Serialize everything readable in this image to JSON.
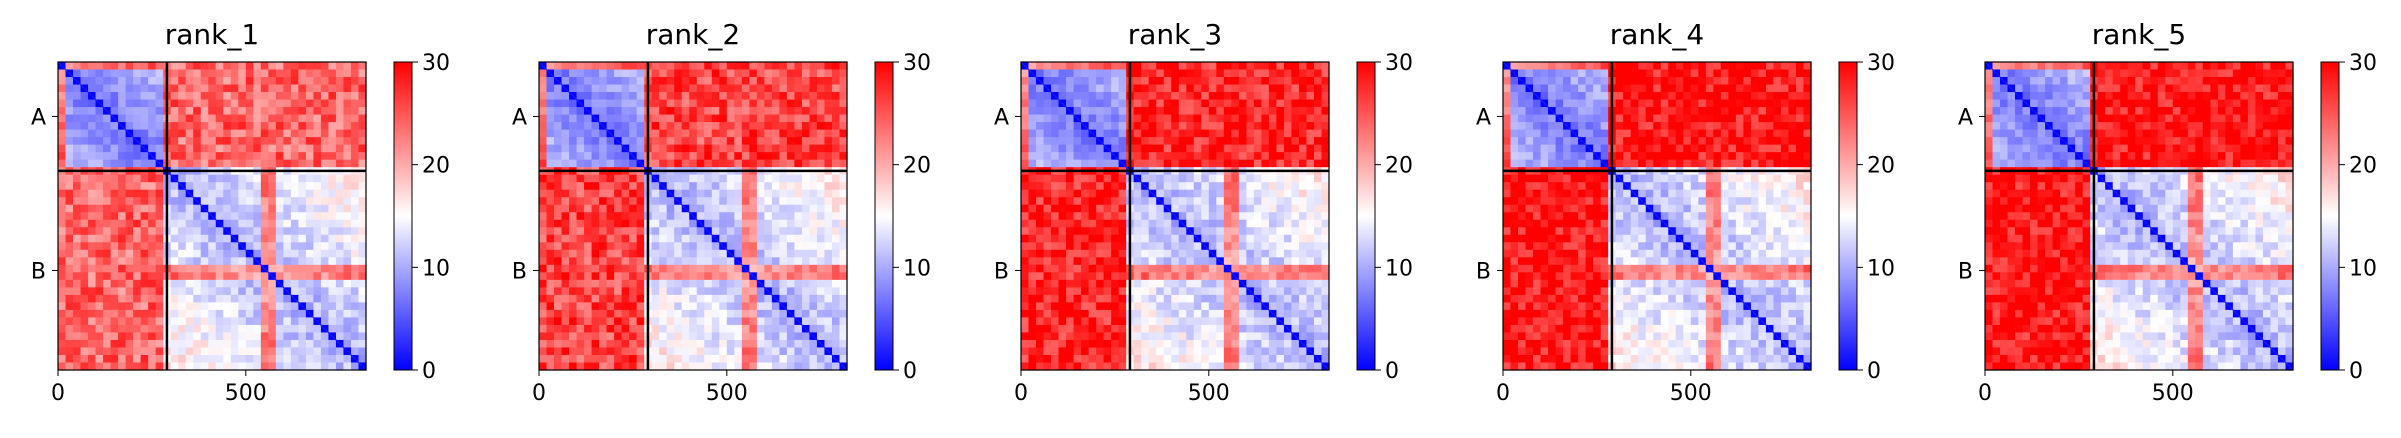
{
  "chart_data": {
    "type": "heatmap",
    "description_kind": "predicted aligned error matrices, chain A (~0-290) and chain B (~290-820)",
    "x_ticks": [
      0,
      500
    ],
    "xlim": [
      0,
      820
    ],
    "chain_boundary": 290,
    "chain_labels": [
      "A",
      "B"
    ],
    "colorbar": {
      "min": 0,
      "max": 30,
      "ticks": [
        0,
        10,
        20,
        30
      ],
      "colormap": "bwr"
    },
    "panels": [
      {
        "title": "rank_1",
        "intra_a_mean": 5,
        "intra_b_mean": 8,
        "inter_chain_mean": 24
      },
      {
        "title": "rank_2",
        "intra_a_mean": 5,
        "intra_b_mean": 8,
        "inter_chain_mean": 26
      },
      {
        "title": "rank_3",
        "intra_a_mean": 5,
        "intra_b_mean": 8,
        "inter_chain_mean": 28
      },
      {
        "title": "rank_4",
        "intra_a_mean": 5,
        "intra_b_mean": 8,
        "inter_chain_mean": 29
      },
      {
        "title": "rank_5",
        "intra_a_mean": 5,
        "intra_b_mean": 8,
        "inter_chain_mean": 29
      }
    ]
  },
  "colors": {
    "low": "#0000ff",
    "mid": "#ffffff",
    "high": "#ff0000",
    "frame": "#000000"
  }
}
